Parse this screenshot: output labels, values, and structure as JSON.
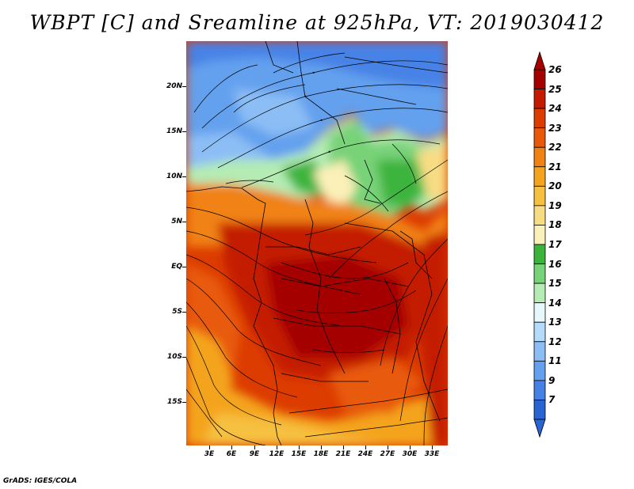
{
  "title": "WBPT [C] and Sreamline at 925hPa, VT: 2019030412",
  "footer": "GrADS: IGES/COLA",
  "y_axis_labels": [
    "20N",
    "15N",
    "10N",
    "5N",
    "EQ",
    "5S",
    "10S",
    "15S"
  ],
  "x_axis_labels": [
    "3E",
    "6E",
    "9E",
    "12E",
    "15E",
    "18E",
    "21E",
    "24E",
    "27E",
    "30E",
    "33E"
  ],
  "colorbar": {
    "labels": [
      "26",
      "25",
      "24",
      "23",
      "22",
      "21",
      "20",
      "19",
      "18",
      "17",
      "16",
      "15",
      "14",
      "13",
      "12",
      "11",
      "9",
      "7"
    ],
    "colors": [
      "#a50000",
      "#c41a00",
      "#dc3c00",
      "#e85a0a",
      "#f08214",
      "#f4a41e",
      "#f6c040",
      "#f8dc84",
      "#fbf0b8",
      "#3cb43c",
      "#78d278",
      "#b4ecb4",
      "#e6f8fa",
      "#b4dcfa",
      "#8cbef5",
      "#64a0ee",
      "#4682e6",
      "#2864d2"
    ]
  },
  "map": {
    "lon_range": [
      0,
      34
    ],
    "lat_range": [
      -20,
      25
    ],
    "field": "WBPT",
    "units": "C",
    "level": "925hPa",
    "valid_time": "2019030412"
  }
}
